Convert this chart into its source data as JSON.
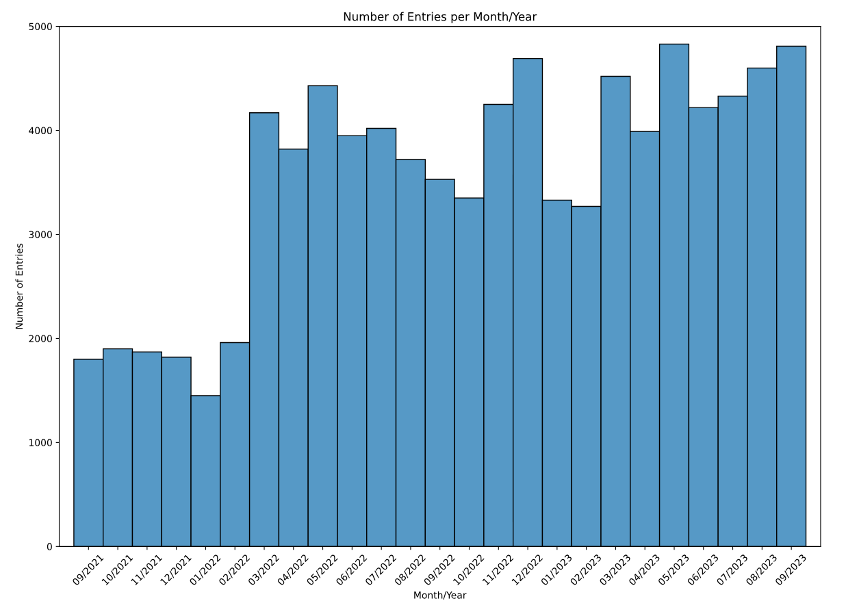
{
  "chart_data": {
    "type": "bar",
    "title": "Number of Entries per Month/Year",
    "xlabel": "Month/Year",
    "ylabel": "Number of Entries",
    "categories": [
      "09/2021",
      "10/2021",
      "11/2021",
      "12/2021",
      "01/2022",
      "02/2022",
      "03/2022",
      "04/2022",
      "05/2022",
      "06/2022",
      "07/2022",
      "08/2022",
      "09/2022",
      "10/2022",
      "11/2022",
      "12/2022",
      "01/2023",
      "02/2023",
      "03/2023",
      "04/2023",
      "05/2023",
      "06/2023",
      "07/2023",
      "08/2023",
      "09/2023"
    ],
    "values": [
      1800,
      1900,
      1870,
      1820,
      1450,
      1960,
      4170,
      3820,
      4430,
      3950,
      4020,
      3720,
      3530,
      3350,
      4250,
      4690,
      3330,
      3270,
      4520,
      3990,
      4830,
      4220,
      4330,
      4600,
      4810
    ],
    "color": "#5699c6",
    "ylim": [
      0,
      5000
    ],
    "yticks": [
      0,
      1000,
      2000,
      3000,
      4000,
      5000
    ],
    "grid": false
  }
}
